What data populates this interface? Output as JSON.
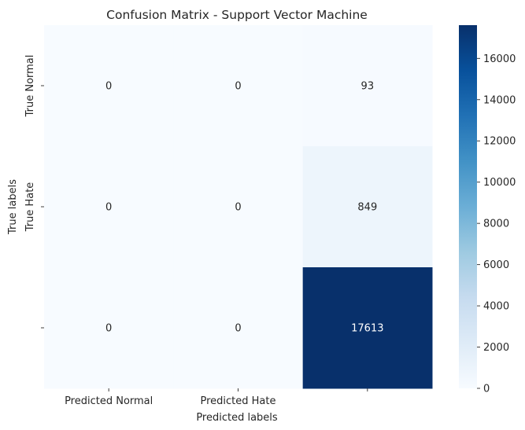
{
  "chart_data": {
    "type": "heatmap",
    "title": "Confusion Matrix - Support Vector Machine",
    "xlabel": "Predicted labels",
    "ylabel": "True labels",
    "x_tick_labels": [
      "Predicted Normal",
      "Predicted Hate",
      ""
    ],
    "y_tick_labels": [
      "True Normal",
      "True Hate",
      ""
    ],
    "matrix": [
      [
        0,
        0,
        93
      ],
      [
        0,
        0,
        849
      ],
      [
        0,
        0,
        17613
      ]
    ],
    "colormap": "Blues",
    "color_low": "#f7fbff",
    "color_high": "#08306b",
    "vmin": 0,
    "vmax": 17613,
    "colorbar_ticks": [
      0,
      2000,
      4000,
      6000,
      8000,
      10000,
      12000,
      14000,
      16000
    ],
    "legend": "colorbar-right"
  }
}
